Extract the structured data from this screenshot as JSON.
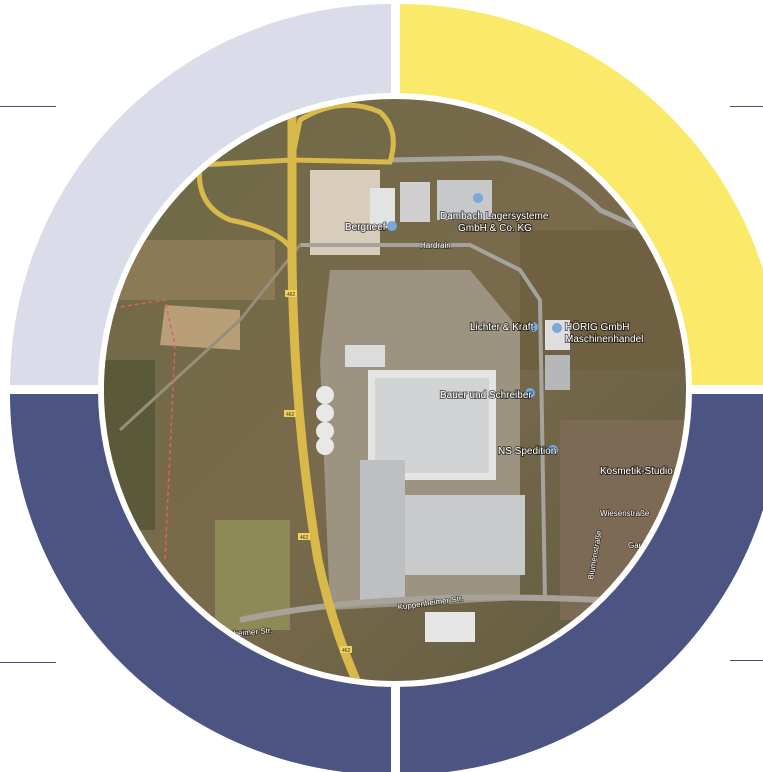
{
  "colors": {
    "quadrant_top_left": "#dadde9",
    "quadrant_top_right": "#fbea6a",
    "quadrant_bottom_left": "#4b5483",
    "quadrant_bottom_right": "#4b5483",
    "side_lines": "#3f4d7e",
    "map_border": "#ffffff"
  },
  "map": {
    "places": [
      {
        "label": "Bergneef"
      },
      {
        "label": "Dambach Lagersysteme"
      },
      {
        "label": "GmbH & Co. KG"
      },
      {
        "label": "Hardrain"
      },
      {
        "label": "Lichter & Kraft"
      },
      {
        "label": "HÖRIG GmbH"
      },
      {
        "label": "Maschinenhandel"
      },
      {
        "label": "Bauer und Schreiber"
      },
      {
        "label": "NS Spedition"
      },
      {
        "label": "Kosmetik-Studio K"
      },
      {
        "label": "Wiesenstraße"
      },
      {
        "label": "Gartenstraße"
      },
      {
        "label": "Blumenstraße"
      },
      {
        "label": "Kuppenheimer Str."
      },
      {
        "label": "enheimer Str."
      }
    ],
    "road_shields": [
      {
        "label": "462"
      },
      {
        "label": "462"
      },
      {
        "label": "462"
      },
      {
        "label": "462"
      }
    ]
  }
}
